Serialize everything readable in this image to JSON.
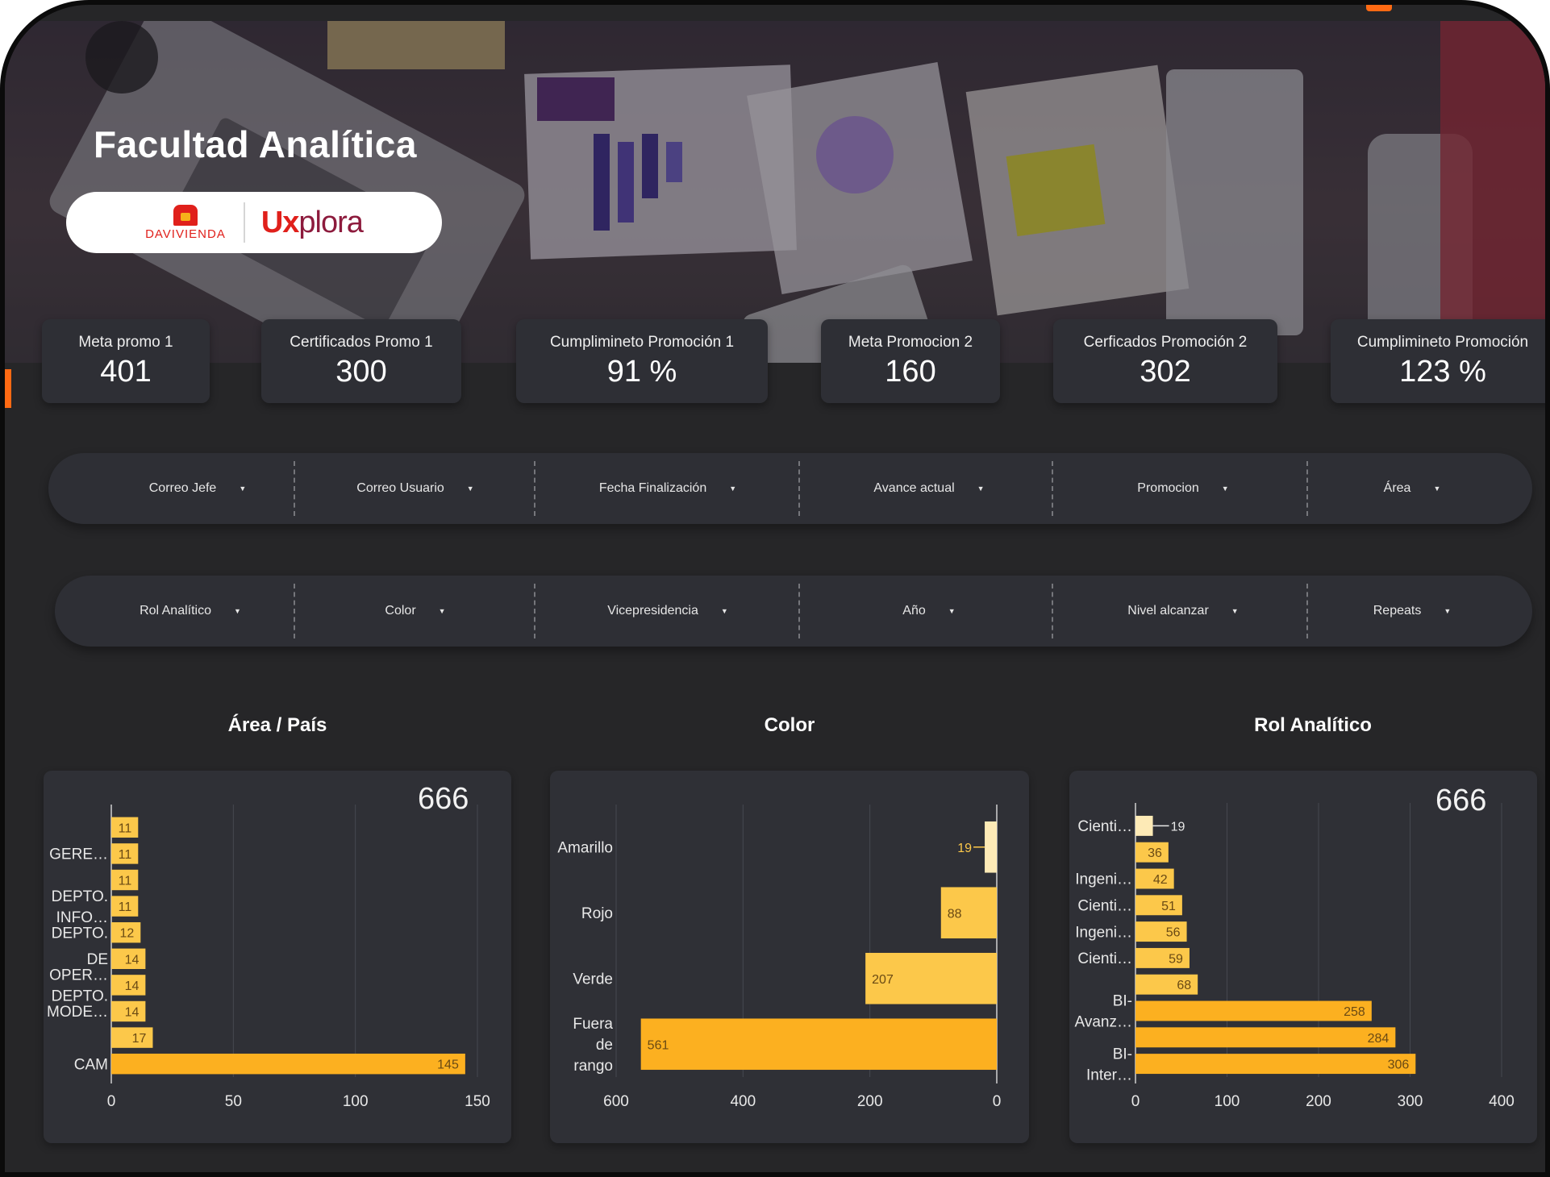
{
  "hero": {
    "title": "Facultad Analítica",
    "logo_left": "DAVIVIENDA",
    "logo_right_ux": "Ux",
    "logo_right_rest": "plora"
  },
  "kpis": [
    {
      "label": "Meta promo 1",
      "value": "401"
    },
    {
      "label": "Certificados Promo 1",
      "value": "300"
    },
    {
      "label": "Cumplimineto Promoción 1",
      "value": "91 %"
    },
    {
      "label": "Meta Promocion 2",
      "value": "160"
    },
    {
      "label": "Cerficados Promoción 2",
      "value": "302"
    },
    {
      "label": "Cumplimineto Promoción",
      "value": "123 %"
    }
  ],
  "filters_row1": [
    "Correo Jefe",
    "Correo Usuario",
    "Fecha Finalización",
    "Avance actual",
    "Promocion",
    "Área"
  ],
  "filters_row2": [
    "Rol Analítico",
    "Color",
    "Vicepresidencia",
    "Año",
    "Nivel alcanzar",
    "Repeats"
  ],
  "colors": {
    "bar_light": "#fdeab6",
    "bar_mid": "#fcc84a",
    "bar_strong": "#fcb020",
    "card": "#2f3036",
    "background": "#262628"
  },
  "chart_data": [
    {
      "type": "bar",
      "orientation": "horizontal",
      "title": "Área / País",
      "total": "666",
      "categories": [
        "",
        "GERE…",
        "",
        "DEPTO. INFO…",
        "DEPTO.",
        "DE",
        "OPER… DEPTO.",
        "MODE…",
        "",
        "CAM"
      ],
      "values": [
        11,
        11,
        11,
        11,
        12,
        14,
        14,
        14,
        17,
        145
      ],
      "xlim": [
        0,
        150
      ],
      "xticks": [
        "0",
        "50",
        "100",
        "150"
      ]
    },
    {
      "type": "bar",
      "orientation": "horizontal",
      "title": "Color",
      "categories": [
        "Amarillo",
        "Rojo",
        "Verde",
        "Fuera de rango"
      ],
      "values": [
        19,
        88,
        207,
        561
      ],
      "xlim": [
        600,
        0
      ],
      "xticks": [
        "600",
        "400",
        "200",
        "0"
      ]
    },
    {
      "type": "bar",
      "orientation": "horizontal",
      "title": "Rol Analítico",
      "total": "666",
      "categories": [
        "Cienti…",
        "",
        "Ingeni…",
        "Cienti…",
        "Ingeni…",
        "Cienti…",
        "",
        "BI- Avanz…",
        "",
        "BI- Inter…"
      ],
      "values": [
        19,
        36,
        42,
        51,
        56,
        59,
        68,
        258,
        284,
        306
      ],
      "xlim": [
        0,
        400
      ],
      "xticks": [
        "0",
        "100",
        "200",
        "300",
        "400"
      ]
    }
  ]
}
